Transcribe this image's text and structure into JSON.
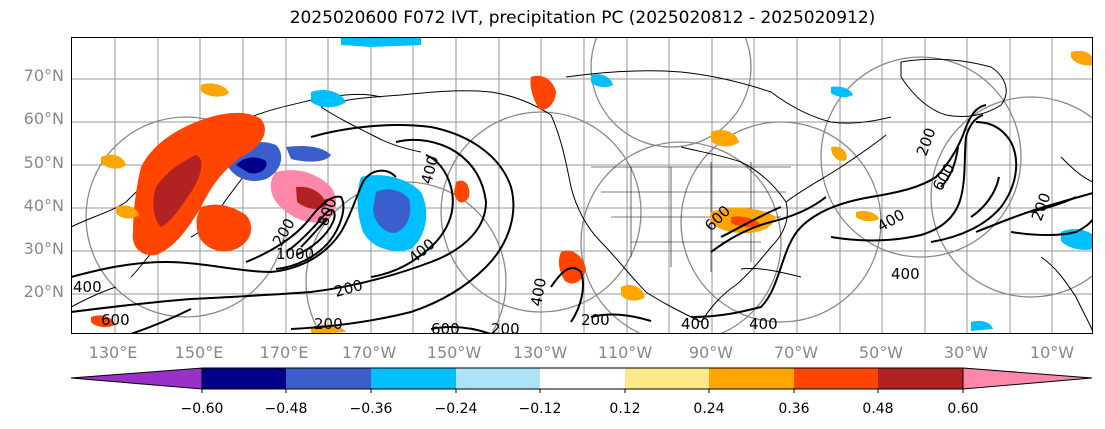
{
  "title": "2025020600 F072 IVT, precipitation PC (2025020812 - 2025020912)",
  "lat_labels": [
    "70°N",
    "60°N",
    "50°N",
    "40°N",
    "30°N",
    "20°N"
  ],
  "lon_labels": [
    "130°E",
    "150°E",
    "170°E",
    "170°W",
    "150°W",
    "130°W",
    "110°W",
    "90°W",
    "70°W",
    "50°W",
    "30°W",
    "10°W"
  ],
  "colorbar": {
    "ticks": [
      "−0.60",
      "−0.48",
      "−0.36",
      "−0.24",
      "−0.12",
      "0.12",
      "0.24",
      "0.36",
      "0.48",
      "0.60"
    ],
    "colors": [
      "#9b30c8",
      "#00008b",
      "#3a5fcd",
      "#00bfff",
      "#ade2f7",
      "#ffffff",
      "#ffe88a",
      "#ffa500",
      "#ff4500",
      "#b22222",
      "#ff88aa"
    ]
  },
  "ivt_contour_labels": [
    "200",
    "400",
    "600",
    "800",
    "1000",
    "200",
    "400",
    "200",
    "400",
    "600",
    "400",
    "200",
    "400",
    "600",
    "400",
    "200",
    "400",
    "600",
    "200",
    "400",
    "200"
  ],
  "colors": {
    "negative_strong": "#3a5fcd",
    "negative": "#00bfff",
    "positive": "#ffa500",
    "positive_strong": "#ff4500",
    "peak": "#ff88aa"
  }
}
